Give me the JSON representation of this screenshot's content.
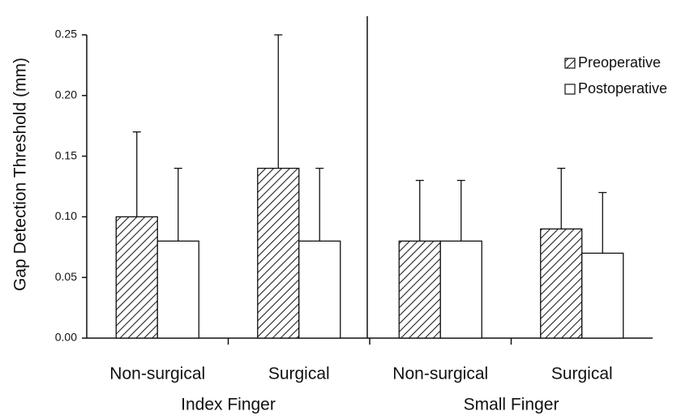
{
  "chart_data": {
    "type": "bar",
    "ylabel": "Gap Detection Threshold (mm)",
    "categories": [
      "Non-surgical",
      "Surgical",
      "Non-surgical",
      "Surgical"
    ],
    "groups": [
      "Index Finger",
      "Small Finger"
    ],
    "series": [
      {
        "name": "Preoperative",
        "color": "#222222",
        "pattern": "diagonal",
        "values": [
          0.1,
          0.14,
          0.08,
          0.09
        ],
        "errors": [
          0.07,
          0.11,
          0.05,
          0.05
        ]
      },
      {
        "name": "Postoperative",
        "color": "#ffffff",
        "values": [
          0.08,
          0.08,
          0.08,
          0.07
        ],
        "errors": [
          0.06,
          0.06,
          0.05,
          0.05
        ]
      }
    ],
    "ylim": [
      0,
      0.25
    ],
    "yticks": [
      {
        "value": 0,
        "label": "0.00"
      },
      0.05,
      {
        "value": 0.1,
        "label": "0.10"
      },
      0.15,
      {
        "value": 0.2,
        "label": "0.20"
      },
      0.25
    ],
    "legend": "upper right"
  }
}
